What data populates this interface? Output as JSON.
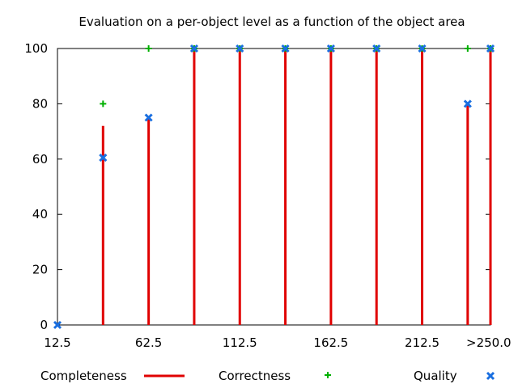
{
  "chart_data": {
    "type": "bar",
    "title": "Evaluation on a per-object level as a function of the object area",
    "xlabel": "",
    "ylabel": "",
    "ylim": [
      0,
      100
    ],
    "yticks": [
      "0",
      "20",
      "40",
      "60",
      "80",
      "100"
    ],
    "x_tick_labels": [
      "12.5",
      "62.5",
      "112.5",
      "162.5",
      "212.5",
      ">250.0"
    ],
    "x": [
      12.5,
      37.5,
      62.5,
      87.5,
      112.5,
      137.5,
      162.5,
      187.5,
      212.5,
      237.5,
      250.0
    ],
    "series": [
      {
        "name": "Completeness",
        "style": "impulses",
        "color": "#e00000",
        "values": [
          0,
          72,
          75,
          100,
          100,
          100,
          100,
          100,
          100,
          80,
          100
        ]
      },
      {
        "name": "Correctness",
        "style": "points-plus",
        "color": "#00b000",
        "values": [
          0,
          80,
          100,
          100,
          100,
          100,
          100,
          100,
          100,
          100,
          100
        ]
      },
      {
        "name": "Quality",
        "style": "points-cross",
        "color": "#1a6fe0",
        "values": [
          0,
          60.5,
          75,
          100,
          100,
          100,
          100,
          100,
          100,
          80,
          100
        ]
      }
    ],
    "grid": false,
    "legend_position": "bottom"
  }
}
